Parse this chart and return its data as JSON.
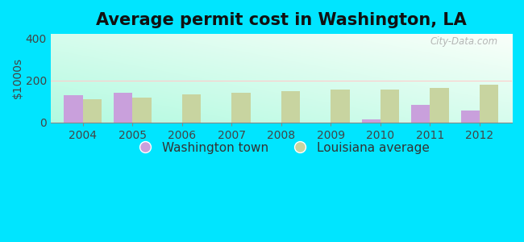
{
  "title": "Average permit cost in Washington, LA",
  "ylabel": "$1000s",
  "years": [
    2004,
    2005,
    2006,
    2007,
    2008,
    2009,
    2010,
    2011,
    2012
  ],
  "washington_values": [
    130,
    140,
    null,
    null,
    null,
    null,
    15,
    85,
    55
  ],
  "louisiana_values": [
    110,
    118,
    132,
    142,
    148,
    158,
    158,
    165,
    178
  ],
  "washington_color": "#c9a0dc",
  "louisiana_color": "#c8d4a0",
  "bar_width": 0.38,
  "ylim": [
    0,
    420
  ],
  "yticks": [
    0,
    200,
    400
  ],
  "outer_bg": "#00e5ff",
  "title_fontsize": 15,
  "axis_fontsize": 10,
  "legend_fontsize": 11,
  "watermark": "City-Data.com",
  "bg_colors_lr": [
    "#b0f0e8",
    "#ffffff"
  ],
  "bg_colors_tb": [
    "#e8f8f0",
    "#ffffff"
  ]
}
